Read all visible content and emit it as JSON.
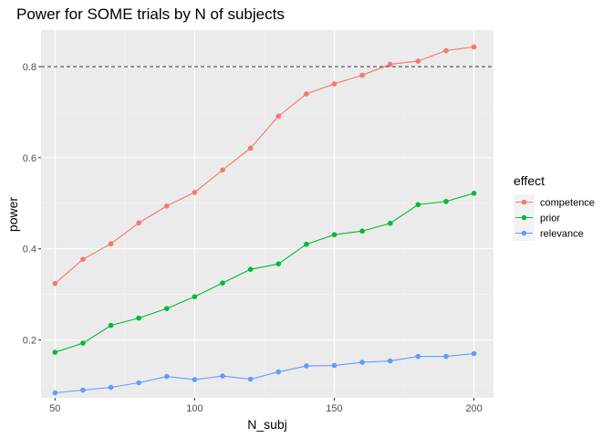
{
  "chart_data": {
    "type": "line",
    "title": "Power for SOME trials by N of subjects",
    "xlabel": "N_subj",
    "ylabel": "power",
    "xlim": [
      45,
      207
    ],
    "ylim": [
      0.073,
      0.88
    ],
    "xticks": [
      50,
      100,
      150,
      200
    ],
    "xtick_labels": [
      "50",
      "100",
      "150",
      "200"
    ],
    "yticks": [
      0.2,
      0.4,
      0.6,
      0.8
    ],
    "ytick_labels": [
      "0.2",
      "0.4",
      "0.6",
      "0.8"
    ],
    "reference_line": {
      "y": 0.8,
      "style": "dashed"
    },
    "grid": true,
    "legend": {
      "title": "effect",
      "placement": "right"
    },
    "x": [
      50,
      60,
      70,
      80,
      90,
      100,
      110,
      120,
      130,
      140,
      150,
      160,
      170,
      180,
      190,
      200
    ],
    "series": [
      {
        "name": "competence",
        "color": "#F8766D",
        "values": [
          0.324,
          0.377,
          0.411,
          0.457,
          0.494,
          0.524,
          0.573,
          0.621,
          0.691,
          0.74,
          0.762,
          0.781,
          0.805,
          0.812,
          0.835,
          0.843
        ]
      },
      {
        "name": "prior",
        "color": "#00BA38",
        "values": [
          0.173,
          0.193,
          0.232,
          0.248,
          0.269,
          0.295,
          0.325,
          0.355,
          0.367,
          0.41,
          0.431,
          0.439,
          0.456,
          0.497,
          0.504,
          0.522
        ]
      },
      {
        "name": "relevance",
        "color": "#619CFF",
        "values": [
          0.084,
          0.09,
          0.096,
          0.106,
          0.12,
          0.113,
          0.121,
          0.114,
          0.13,
          0.143,
          0.144,
          0.151,
          0.154,
          0.164,
          0.164,
          0.17
        ]
      }
    ]
  }
}
